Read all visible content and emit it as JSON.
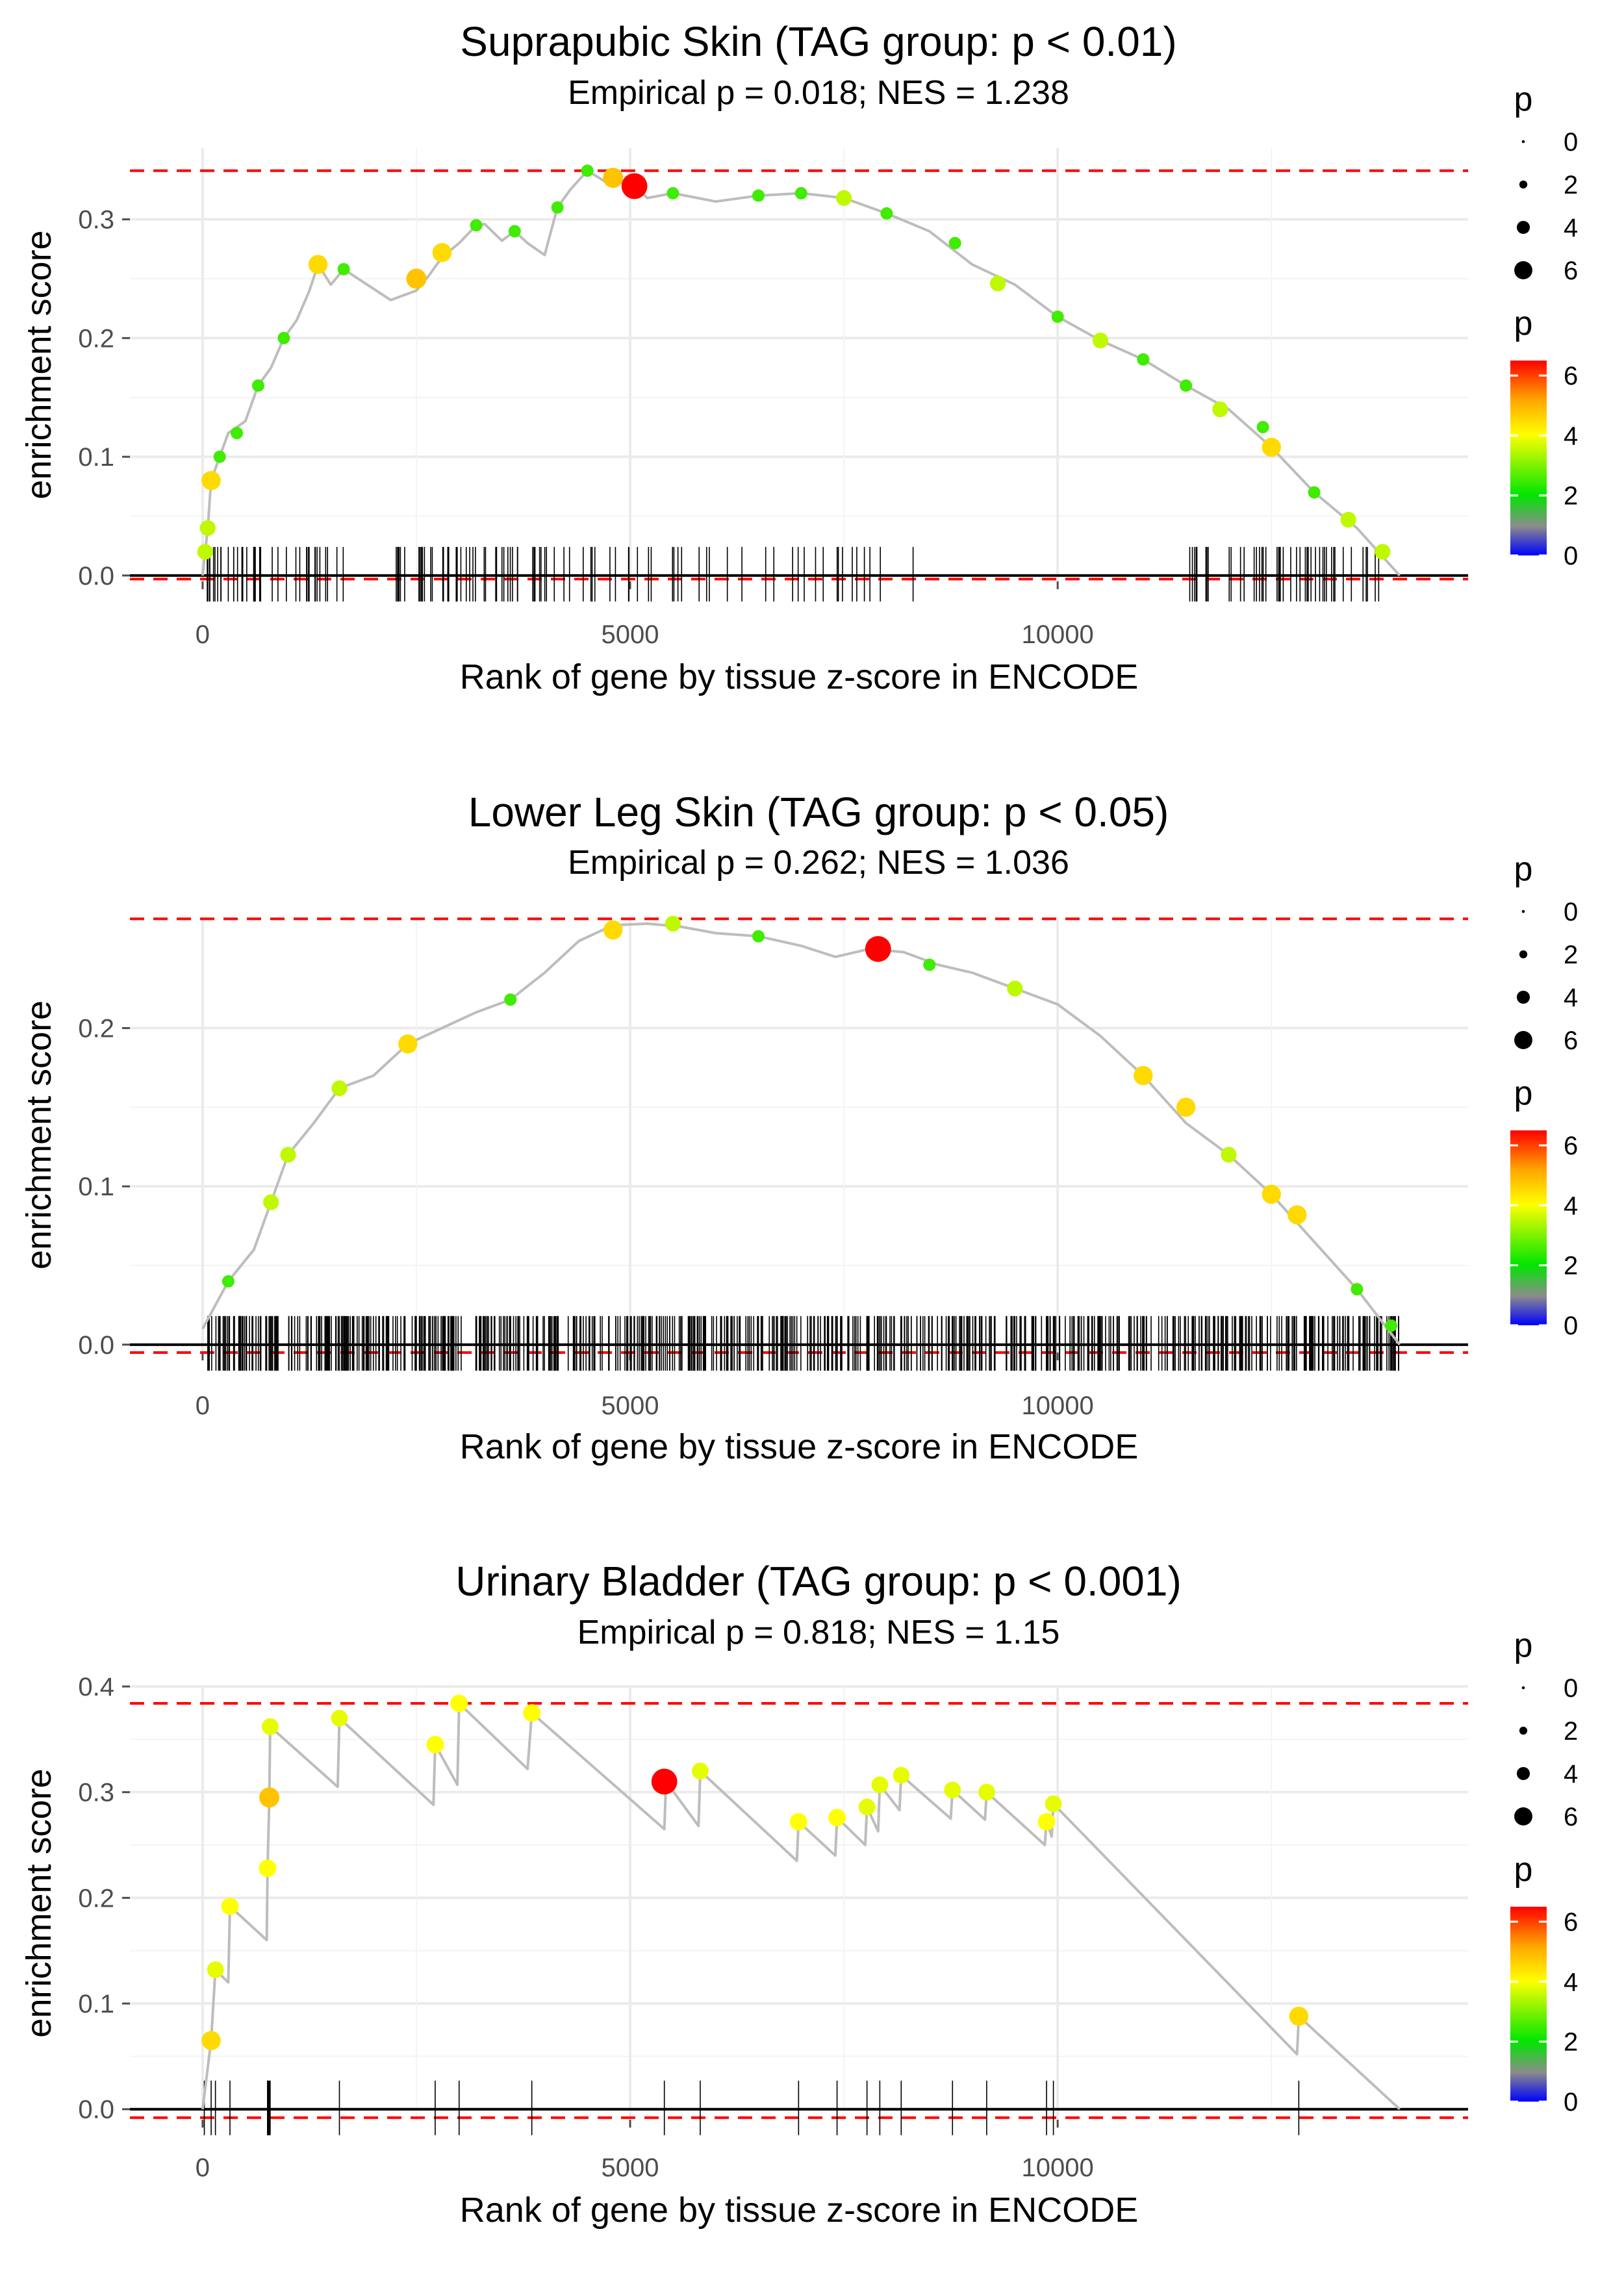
{
  "chart_data": [
    {
      "type": "line",
      "title": "Suprapubic Skin (TAG group: p < 0.01)",
      "subtitle": "Empirical p = 0.018; NES = 1.238",
      "xlabel": "Rank of gene by tissue z-score in ENCODE",
      "ylabel": "enrichment score",
      "xlim": [
        -850,
        14800
      ],
      "ylim": [
        -0.005,
        0.36
      ],
      "xticks": [
        0,
        5000,
        10000
      ],
      "xtick_labels": [
        "0",
        "5000",
        "10000"
      ],
      "yticks": [
        0.0,
        0.1,
        0.2,
        0.3
      ],
      "ytick_labels": [
        "0.0",
        "0.1",
        "0.2",
        "0.3"
      ],
      "max_es": 0.341,
      "min_es": -0.003,
      "grid": true,
      "trace": [
        [
          0,
          0
        ],
        [
          60,
          0.04
        ],
        [
          100,
          0.08
        ],
        [
          200,
          0.1
        ],
        [
          300,
          0.12
        ],
        [
          500,
          0.13
        ],
        [
          650,
          0.16
        ],
        [
          800,
          0.175
        ],
        [
          950,
          0.2
        ],
        [
          1100,
          0.215
        ],
        [
          1250,
          0.24
        ],
        [
          1350,
          0.262
        ],
        [
          1500,
          0.245
        ],
        [
          1650,
          0.258
        ],
        [
          2200,
          0.232
        ],
        [
          2500,
          0.24
        ],
        [
          2650,
          0.253
        ],
        [
          2800,
          0.268
        ],
        [
          3000,
          0.28
        ],
        [
          3200,
          0.295
        ],
        [
          3300,
          0.296
        ],
        [
          3500,
          0.282
        ],
        [
          3650,
          0.29
        ],
        [
          3800,
          0.28
        ],
        [
          4000,
          0.27
        ],
        [
          4150,
          0.31
        ],
        [
          4300,
          0.325
        ],
        [
          4500,
          0.341
        ],
        [
          4750,
          0.33
        ],
        [
          5000,
          0.332
        ],
        [
          5200,
          0.318
        ],
        [
          5500,
          0.322
        ],
        [
          6000,
          0.315
        ],
        [
          6500,
          0.32
        ],
        [
          7000,
          0.322
        ],
        [
          7500,
          0.318
        ],
        [
          8000,
          0.305
        ],
        [
          8500,
          0.29
        ],
        [
          9000,
          0.262
        ],
        [
          9500,
          0.245
        ],
        [
          10000,
          0.218
        ],
        [
          10500,
          0.198
        ],
        [
          11000,
          0.182
        ],
        [
          11500,
          0.16
        ],
        [
          12000,
          0.14
        ],
        [
          12500,
          0.108
        ],
        [
          13000,
          0.07
        ],
        [
          13500,
          0.04
        ],
        [
          14000,
          0
        ]
      ],
      "points": [
        [
          30,
          0.02,
          3.5
        ],
        [
          60,
          0.04,
          3.5
        ],
        [
          100,
          0.08,
          4.5
        ],
        [
          200,
          0.1,
          2.5
        ],
        [
          400,
          0.12,
          2.5
        ],
        [
          650,
          0.16,
          2.5
        ],
        [
          950,
          0.2,
          2.5
        ],
        [
          1350,
          0.262,
          4.5
        ],
        [
          1650,
          0.258,
          2.5
        ],
        [
          2500,
          0.25,
          4.8
        ],
        [
          2800,
          0.272,
          4.5
        ],
        [
          3200,
          0.295,
          2.5
        ],
        [
          3650,
          0.29,
          2.5
        ],
        [
          4150,
          0.31,
          2.5
        ],
        [
          4500,
          0.341,
          2.5
        ],
        [
          4800,
          0.335,
          4.8
        ],
        [
          5050,
          0.328,
          6.5
        ],
        [
          5500,
          0.322,
          2.5
        ],
        [
          6500,
          0.32,
          2.5
        ],
        [
          7000,
          0.322,
          2.5
        ],
        [
          7500,
          0.318,
          3.5
        ],
        [
          8000,
          0.305,
          2.5
        ],
        [
          8800,
          0.28,
          2.5
        ],
        [
          9300,
          0.246,
          3.5
        ],
        [
          10000,
          0.218,
          2.5
        ],
        [
          10500,
          0.198,
          3.5
        ],
        [
          11000,
          0.182,
          2.5
        ],
        [
          11500,
          0.16,
          2.5
        ],
        [
          11900,
          0.14,
          3.5
        ],
        [
          12400,
          0.125,
          2.5
        ],
        [
          12500,
          0.108,
          4.5
        ],
        [
          13000,
          0.07,
          2.5
        ],
        [
          13400,
          0.047,
          3.5
        ],
        [
          13800,
          0.02,
          3.5
        ]
      ],
      "size_legend": {
        "title": "p",
        "values": [
          "0",
          "2",
          "4",
          "6"
        ]
      },
      "color_legend": {
        "title": "p",
        "values": [
          "0",
          "2",
          "4",
          "6"
        ]
      }
    },
    {
      "type": "line",
      "title": "Lower Leg Skin (TAG group: p < 0.05)",
      "subtitle": "Empirical p = 0.262; NES = 1.036",
      "xlabel": "Rank of gene by tissue z-score in ENCODE",
      "ylabel": "enrichment score",
      "xlim": [
        -850,
        14800
      ],
      "ylim": [
        -0.005,
        0.27
      ],
      "xticks": [
        0,
        5000,
        10000
      ],
      "xtick_labels": [
        "0",
        "5000",
        "10000"
      ],
      "yticks": [
        0.0,
        0.1,
        0.2
      ],
      "ytick_labels": [
        "0.0",
        "0.1",
        "0.2"
      ],
      "max_es": 0.269,
      "min_es": -0.005,
      "grid": true,
      "trace": [
        [
          0,
          0.01
        ],
        [
          300,
          0.04
        ],
        [
          600,
          0.06
        ],
        [
          800,
          0.09
        ],
        [
          1000,
          0.12
        ],
        [
          1300,
          0.14
        ],
        [
          1600,
          0.162
        ],
        [
          2000,
          0.17
        ],
        [
          2400,
          0.19
        ],
        [
          2800,
          0.2
        ],
        [
          3200,
          0.21
        ],
        [
          3600,
          0.218
        ],
        [
          4000,
          0.235
        ],
        [
          4400,
          0.255
        ],
        [
          4800,
          0.265
        ],
        [
          5200,
          0.266
        ],
        [
          5600,
          0.264
        ],
        [
          6000,
          0.26
        ],
        [
          6500,
          0.258
        ],
        [
          7000,
          0.252
        ],
        [
          7400,
          0.245
        ],
        [
          7800,
          0.25
        ],
        [
          8200,
          0.248
        ],
        [
          8600,
          0.24
        ],
        [
          9000,
          0.235
        ],
        [
          9500,
          0.225
        ],
        [
          10000,
          0.215
        ],
        [
          10500,
          0.195
        ],
        [
          11000,
          0.17
        ],
        [
          11500,
          0.14
        ],
        [
          12000,
          0.12
        ],
        [
          12500,
          0.095
        ],
        [
          13000,
          0.065
        ],
        [
          13500,
          0.035
        ],
        [
          14000,
          0
        ]
      ],
      "points": [
        [
          300,
          0.04,
          2.5
        ],
        [
          800,
          0.09,
          3.5
        ],
        [
          1000,
          0.12,
          3.5
        ],
        [
          1600,
          0.162,
          3.5
        ],
        [
          2400,
          0.19,
          4.5
        ],
        [
          3600,
          0.218,
          2.5
        ],
        [
          4800,
          0.262,
          4.5
        ],
        [
          5500,
          0.266,
          3.5
        ],
        [
          6500,
          0.258,
          2.5
        ],
        [
          7900,
          0.25,
          6.5
        ],
        [
          8500,
          0.24,
          2.5
        ],
        [
          9500,
          0.225,
          3.5
        ],
        [
          11000,
          0.17,
          4.5
        ],
        [
          11500,
          0.15,
          4.5
        ],
        [
          12000,
          0.12,
          3.5
        ],
        [
          12500,
          0.095,
          4.5
        ],
        [
          12800,
          0.082,
          4.5
        ],
        [
          13500,
          0.035,
          2.5
        ],
        [
          13900,
          0.012,
          2.5
        ]
      ],
      "size_legend": {
        "title": "p",
        "values": [
          "0",
          "2",
          "4",
          "6"
        ]
      },
      "color_legend": {
        "title": "p",
        "values": [
          "0",
          "2",
          "4",
          "6"
        ]
      }
    },
    {
      "type": "line",
      "title": "Urinary Bladder (TAG group: p < 0.001)",
      "subtitle": "Empirical p = 0.818; NES = 1.15",
      "xlabel": "Rank of gene by tissue z-score in ENCODE",
      "ylabel": "enrichment score",
      "xlim": [
        -850,
        14800
      ],
      "ylim": [
        -0.01,
        0.4
      ],
      "xticks": [
        0,
        5000,
        10000
      ],
      "xtick_labels": [
        "0",
        "5000",
        "10000"
      ],
      "yticks": [
        0.0,
        0.1,
        0.2,
        0.3,
        0.4
      ],
      "ytick_labels": [
        "0.0",
        "0.1",
        "0.2",
        "0.3",
        "0.4"
      ],
      "max_es": 0.384,
      "min_es": -0.008,
      "grid": true,
      "trace": [
        [
          0,
          0
        ],
        [
          100,
          0.065
        ],
        [
          150,
          0.132
        ],
        [
          300,
          0.12
        ],
        [
          320,
          0.192
        ],
        [
          750,
          0.16
        ],
        [
          760,
          0.228
        ],
        [
          780,
          0.295
        ],
        [
          790,
          0.362
        ],
        [
          1580,
          0.305
        ],
        [
          1600,
          0.37
        ],
        [
          2700,
          0.288
        ],
        [
          2720,
          0.345
        ],
        [
          2980,
          0.307
        ],
        [
          3000,
          0.384
        ],
        [
          3800,
          0.322
        ],
        [
          3850,
          0.375
        ],
        [
          5400,
          0.265
        ],
        [
          5420,
          0.31
        ],
        [
          5800,
          0.268
        ],
        [
          5820,
          0.32
        ],
        [
          6950,
          0.235
        ],
        [
          6970,
          0.272
        ],
        [
          7400,
          0.24
        ],
        [
          7420,
          0.276
        ],
        [
          7750,
          0.25
        ],
        [
          7770,
          0.286
        ],
        [
          7900,
          0.263
        ],
        [
          7920,
          0.307
        ],
        [
          8150,
          0.283
        ],
        [
          8170,
          0.316
        ],
        [
          8750,
          0.275
        ],
        [
          8770,
          0.302
        ],
        [
          9150,
          0.274
        ],
        [
          9170,
          0.3
        ],
        [
          9850,
          0.25
        ],
        [
          9870,
          0.272
        ],
        [
          9930,
          0.258
        ],
        [
          9950,
          0.289
        ],
        [
          12800,
          0.052
        ],
        [
          12820,
          0.088
        ],
        [
          14000,
          0
        ]
      ],
      "points": [
        [
          100,
          0.065,
          4.5
        ],
        [
          150,
          0.132,
          3.8
        ],
        [
          320,
          0.192,
          4
        ],
        [
          760,
          0.228,
          4
        ],
        [
          780,
          0.295,
          4.8
        ],
        [
          790,
          0.362,
          3.8
        ],
        [
          1600,
          0.37,
          3.8
        ],
        [
          2720,
          0.345,
          4
        ],
        [
          3000,
          0.384,
          4
        ],
        [
          3850,
          0.375,
          4
        ],
        [
          5400,
          0.31,
          6.5
        ],
        [
          5820,
          0.32,
          3.8
        ],
        [
          6970,
          0.272,
          4
        ],
        [
          7420,
          0.276,
          4
        ],
        [
          7770,
          0.286,
          3.8
        ],
        [
          7920,
          0.307,
          3.8
        ],
        [
          8170,
          0.316,
          3.8
        ],
        [
          8770,
          0.302,
          3.8
        ],
        [
          9170,
          0.3,
          3.8
        ],
        [
          9870,
          0.272,
          4
        ],
        [
          9950,
          0.289,
          3.8
        ],
        [
          12820,
          0.088,
          4.5
        ]
      ],
      "size_legend": {
        "title": "p",
        "values": [
          "0",
          "2",
          "4",
          "6"
        ]
      },
      "color_legend": {
        "title": "p",
        "values": [
          "0",
          "2",
          "4",
          "6"
        ]
      }
    }
  ]
}
